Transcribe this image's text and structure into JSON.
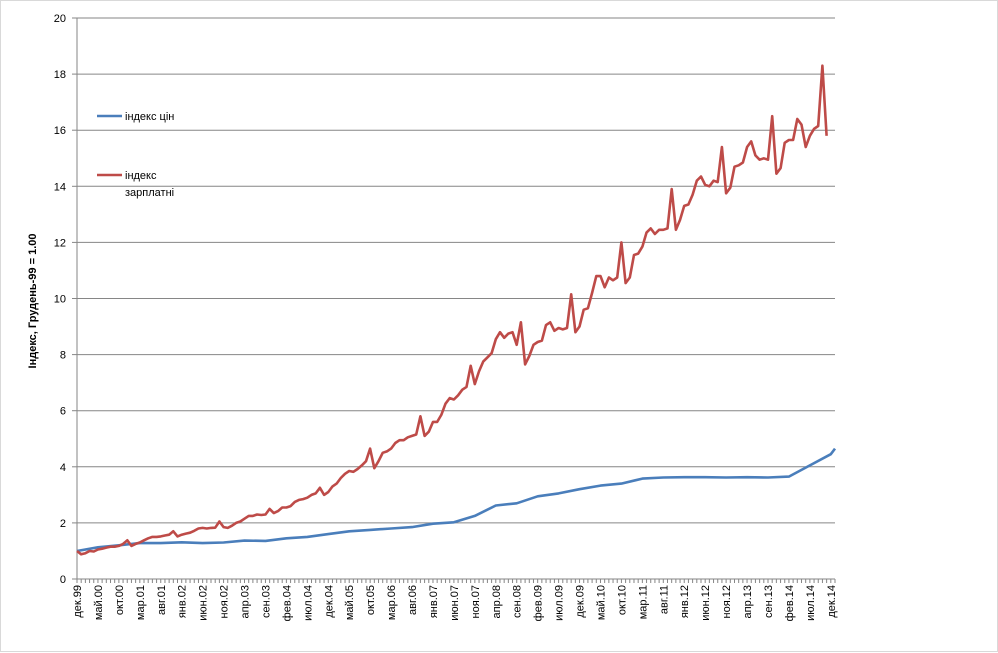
{
  "chart_data": {
    "type": "line",
    "ylabel": "Індекс, Грудень-99 = 1.00",
    "ylim": [
      0,
      20
    ],
    "yticks": [
      "0",
      "2",
      "4",
      "6",
      "8",
      "10",
      "12",
      "14",
      "16",
      "18",
      "20"
    ],
    "grid": true,
    "legend_position": "left",
    "x_tick_labels": [
      "дек.99",
      "май.00",
      "окт.00",
      "мар.01",
      "авг.01",
      "янв.02",
      "июн.02",
      "ноя.02",
      "апр.03",
      "сен.03",
      "фев.04",
      "июл.04",
      "дек.04",
      "май.05",
      "окт.05",
      "мар.06",
      "авг.06",
      "янв.07",
      "июн.07",
      "ноя.07",
      "апр.08",
      "сен.08",
      "фев.09",
      "июл.09",
      "дек.09",
      "май.10",
      "окт.10",
      "мар.11",
      "авг.11",
      "янв.12",
      "июн.12",
      "ноя.12",
      "апр.13",
      "сен.13",
      "фев.14",
      "июл.14",
      "дек.14"
    ],
    "x_start": "1999-12",
    "x_end": "2015-01",
    "series": [
      {
        "name": "індекс цін",
        "color": "#4a7ebb",
        "points": [
          [
            "1999-12",
            1.0
          ],
          [
            "2000-05",
            1.13
          ],
          [
            "2000-10",
            1.2
          ],
          [
            "2001-03",
            1.28
          ],
          [
            "2001-08",
            1.28
          ],
          [
            "2002-01",
            1.31
          ],
          [
            "2002-06",
            1.28
          ],
          [
            "2002-11",
            1.3
          ],
          [
            "2003-04",
            1.37
          ],
          [
            "2003-09",
            1.36
          ],
          [
            "2004-02",
            1.45
          ],
          [
            "2004-07",
            1.5
          ],
          [
            "2004-12",
            1.6
          ],
          [
            "2005-05",
            1.7
          ],
          [
            "2005-10",
            1.75
          ],
          [
            "2006-03",
            1.8
          ],
          [
            "2006-08",
            1.85
          ],
          [
            "2007-01",
            1.97
          ],
          [
            "2007-06",
            2.02
          ],
          [
            "2007-11",
            2.25
          ],
          [
            "2008-04",
            2.62
          ],
          [
            "2008-09",
            2.7
          ],
          [
            "2009-02",
            2.95
          ],
          [
            "2009-07",
            3.05
          ],
          [
            "2009-12",
            3.2
          ],
          [
            "2010-05",
            3.33
          ],
          [
            "2010-10",
            3.4
          ],
          [
            "2011-03",
            3.58
          ],
          [
            "2011-08",
            3.62
          ],
          [
            "2012-01",
            3.63
          ],
          [
            "2012-06",
            3.63
          ],
          [
            "2012-11",
            3.62
          ],
          [
            "2013-04",
            3.63
          ],
          [
            "2013-09",
            3.62
          ],
          [
            "2014-02",
            3.65
          ],
          [
            "2014-07",
            4.05
          ],
          [
            "2014-12",
            4.45
          ],
          [
            "2015-01",
            4.65
          ]
        ]
      },
      {
        "name": "індекс зарплатні",
        "color": "#be4b48",
        "points": [
          [
            "1999-12",
            1.0
          ],
          [
            "2000-01",
            0.88
          ],
          [
            "2000-02",
            0.92
          ],
          [
            "2000-03",
            1.0
          ],
          [
            "2000-04",
            0.98
          ],
          [
            "2000-05",
            1.05
          ],
          [
            "2000-06",
            1.08
          ],
          [
            "2000-07",
            1.12
          ],
          [
            "2000-08",
            1.15
          ],
          [
            "2000-09",
            1.15
          ],
          [
            "2000-10",
            1.18
          ],
          [
            "2000-11",
            1.25
          ],
          [
            "2000-12",
            1.38
          ],
          [
            "2001-01",
            1.18
          ],
          [
            "2001-02",
            1.25
          ],
          [
            "2001-03",
            1.3
          ],
          [
            "2001-04",
            1.38
          ],
          [
            "2001-05",
            1.45
          ],
          [
            "2001-06",
            1.5
          ],
          [
            "2001-07",
            1.5
          ],
          [
            "2001-08",
            1.52
          ],
          [
            "2001-09",
            1.55
          ],
          [
            "2001-10",
            1.58
          ],
          [
            "2001-11",
            1.7
          ],
          [
            "2001-12",
            1.52
          ],
          [
            "2002-01",
            1.58
          ],
          [
            "2002-02",
            1.62
          ],
          [
            "2002-03",
            1.65
          ],
          [
            "2002-04",
            1.72
          ],
          [
            "2002-05",
            1.8
          ],
          [
            "2002-06",
            1.82
          ],
          [
            "2002-07",
            1.8
          ],
          [
            "2002-08",
            1.82
          ],
          [
            "2002-09",
            1.83
          ],
          [
            "2002-10",
            2.05
          ],
          [
            "2002-11",
            1.85
          ],
          [
            "2002-12",
            1.82
          ],
          [
            "2003-01",
            1.9
          ],
          [
            "2003-02",
            2.0
          ],
          [
            "2003-03",
            2.05
          ],
          [
            "2003-04",
            2.15
          ],
          [
            "2003-05",
            2.25
          ],
          [
            "2003-06",
            2.25
          ],
          [
            "2003-07",
            2.3
          ],
          [
            "2003-08",
            2.28
          ],
          [
            "2003-09",
            2.3
          ],
          [
            "2003-10",
            2.5
          ],
          [
            "2003-11",
            2.35
          ],
          [
            "2003-12",
            2.42
          ],
          [
            "2004-01",
            2.55
          ],
          [
            "2004-02",
            2.55
          ],
          [
            "2004-03",
            2.6
          ],
          [
            "2004-04",
            2.75
          ],
          [
            "2004-05",
            2.82
          ],
          [
            "2004-06",
            2.85
          ],
          [
            "2004-07",
            2.9
          ],
          [
            "2004-08",
            3.0
          ],
          [
            "2004-09",
            3.05
          ],
          [
            "2004-10",
            3.25
          ],
          [
            "2004-11",
            3.0
          ],
          [
            "2004-12",
            3.1
          ],
          [
            "2005-01",
            3.3
          ],
          [
            "2005-02",
            3.4
          ],
          [
            "2005-03",
            3.6
          ],
          [
            "2005-04",
            3.75
          ],
          [
            "2005-05",
            3.85
          ],
          [
            "2005-06",
            3.82
          ],
          [
            "2005-07",
            3.92
          ],
          [
            "2005-08",
            4.05
          ],
          [
            "2005-09",
            4.2
          ],
          [
            "2005-10",
            4.65
          ],
          [
            "2005-11",
            3.95
          ],
          [
            "2005-12",
            4.2
          ],
          [
            "2006-01",
            4.5
          ],
          [
            "2006-02",
            4.55
          ],
          [
            "2006-03",
            4.65
          ],
          [
            "2006-04",
            4.85
          ],
          [
            "2006-05",
            4.95
          ],
          [
            "2006-06",
            4.95
          ],
          [
            "2006-07",
            5.05
          ],
          [
            "2006-08",
            5.1
          ],
          [
            "2006-09",
            5.15
          ],
          [
            "2006-10",
            5.8
          ],
          [
            "2006-11",
            5.1
          ],
          [
            "2006-12",
            5.25
          ],
          [
            "2007-01",
            5.6
          ],
          [
            "2007-02",
            5.6
          ],
          [
            "2007-03",
            5.85
          ],
          [
            "2007-04",
            6.25
          ],
          [
            "2007-05",
            6.45
          ],
          [
            "2007-06",
            6.4
          ],
          [
            "2007-07",
            6.55
          ],
          [
            "2007-08",
            6.75
          ],
          [
            "2007-09",
            6.85
          ],
          [
            "2007-10",
            7.6
          ],
          [
            "2007-11",
            6.95
          ],
          [
            "2007-12",
            7.4
          ],
          [
            "2008-01",
            7.75
          ],
          [
            "2008-02",
            7.9
          ],
          [
            "2008-03",
            8.05
          ],
          [
            "2008-04",
            8.55
          ],
          [
            "2008-05",
            8.8
          ],
          [
            "2008-06",
            8.6
          ],
          [
            "2008-07",
            8.75
          ],
          [
            "2008-08",
            8.8
          ],
          [
            "2008-09",
            8.35
          ],
          [
            "2008-10",
            9.15
          ],
          [
            "2008-11",
            7.65
          ],
          [
            "2008-12",
            7.95
          ],
          [
            "2009-01",
            8.35
          ],
          [
            "2009-02",
            8.45
          ],
          [
            "2009-03",
            8.5
          ],
          [
            "2009-04",
            9.05
          ],
          [
            "2009-05",
            9.15
          ],
          [
            "2009-06",
            8.85
          ],
          [
            "2009-07",
            8.95
          ],
          [
            "2009-08",
            8.9
          ],
          [
            "2009-09",
            8.95
          ],
          [
            "2009-10",
            10.15
          ],
          [
            "2009-11",
            8.8
          ],
          [
            "2009-12",
            9.0
          ],
          [
            "2010-01",
            9.6
          ],
          [
            "2010-02",
            9.65
          ],
          [
            "2010-03",
            10.2
          ],
          [
            "2010-04",
            10.8
          ],
          [
            "2010-05",
            10.8
          ],
          [
            "2010-06",
            10.4
          ],
          [
            "2010-07",
            10.75
          ],
          [
            "2010-08",
            10.65
          ],
          [
            "2010-09",
            10.75
          ],
          [
            "2010-10",
            12.0
          ],
          [
            "2010-11",
            10.55
          ],
          [
            "2010-12",
            10.75
          ],
          [
            "2011-01",
            11.55
          ],
          [
            "2011-02",
            11.6
          ],
          [
            "2011-03",
            11.85
          ],
          [
            "2011-04",
            12.35
          ],
          [
            "2011-05",
            12.5
          ],
          [
            "2011-06",
            12.3
          ],
          [
            "2011-07",
            12.45
          ],
          [
            "2011-08",
            12.45
          ],
          [
            "2011-09",
            12.5
          ],
          [
            "2011-10",
            13.9
          ],
          [
            "2011-11",
            12.45
          ],
          [
            "2011-12",
            12.8
          ],
          [
            "2012-01",
            13.3
          ],
          [
            "2012-02",
            13.35
          ],
          [
            "2012-03",
            13.7
          ],
          [
            "2012-04",
            14.2
          ],
          [
            "2012-05",
            14.35
          ],
          [
            "2012-06",
            14.05
          ],
          [
            "2012-07",
            14.0
          ],
          [
            "2012-08",
            14.2
          ],
          [
            "2012-09",
            14.15
          ],
          [
            "2012-10",
            15.4
          ],
          [
            "2012-11",
            13.75
          ],
          [
            "2012-12",
            13.95
          ],
          [
            "2013-01",
            14.7
          ],
          [
            "2013-02",
            14.75
          ],
          [
            "2013-03",
            14.85
          ],
          [
            "2013-04",
            15.4
          ],
          [
            "2013-05",
            15.6
          ],
          [
            "2013-06",
            15.1
          ],
          [
            "2013-07",
            14.95
          ],
          [
            "2013-08",
            15.0
          ],
          [
            "2013-09",
            14.95
          ],
          [
            "2013-10",
            16.5
          ],
          [
            "2013-11",
            14.45
          ],
          [
            "2013-12",
            14.65
          ],
          [
            "2014-01",
            15.55
          ],
          [
            "2014-02",
            15.65
          ],
          [
            "2014-03",
            15.65
          ],
          [
            "2014-04",
            16.4
          ],
          [
            "2014-05",
            16.2
          ],
          [
            "2014-06",
            15.4
          ],
          [
            "2014-07",
            15.8
          ],
          [
            "2014-08",
            16.05
          ],
          [
            "2014-09",
            16.15
          ],
          [
            "2014-10",
            18.3
          ],
          [
            "2014-11",
            15.8
          ]
        ]
      }
    ]
  }
}
